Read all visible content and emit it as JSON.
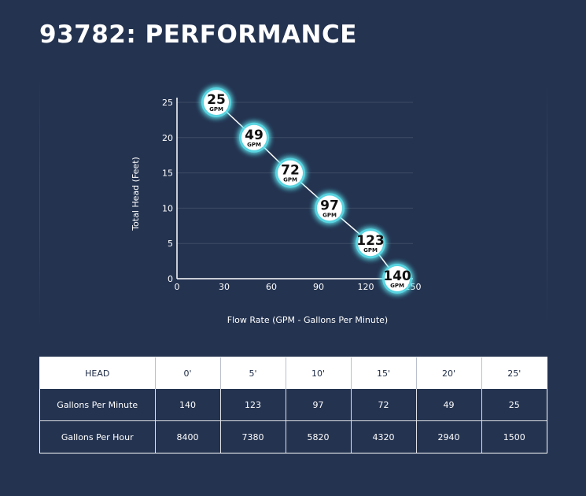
{
  "page": {
    "title": "93782: PERFORMANCE"
  },
  "chart_data": {
    "type": "line",
    "title": "",
    "xlabel": "Flow Rate (GPM - Gallons Per Minute)",
    "ylabel": "Total Head (Feet)",
    "xlim": [
      0,
      150
    ],
    "ylim": [
      0,
      25
    ],
    "x_ticks": [
      "0",
      "30",
      "60",
      "90",
      "120",
      "150"
    ],
    "y_ticks": [
      "0",
      "5",
      "10",
      "15",
      "20",
      "25"
    ],
    "grid": true,
    "series": [
      {
        "x": [
          25,
          49,
          72,
          97,
          123,
          140
        ],
        "y": [
          25,
          20,
          15,
          10,
          5,
          0
        ],
        "labels": [
          "25",
          "49",
          "72",
          "97",
          "123",
          "140"
        ]
      }
    ],
    "point_unit": "GPM",
    "colors": {
      "line": "#ffffff",
      "bubble_glow": "#5ee6f0",
      "bubble_fill": "#ffffff"
    }
  },
  "table": {
    "headers": [
      "HEAD",
      "0'",
      "5'",
      "10'",
      "15'",
      "20'",
      "25'"
    ],
    "rows": [
      [
        "Gallons Per Minute",
        "140",
        "123",
        "97",
        "72",
        "49",
        "25"
      ],
      [
        "Gallons Per Hour",
        "8400",
        "7380",
        "5820",
        "4320",
        "2940",
        "1500"
      ]
    ]
  },
  "colors": {
    "background": "#243350",
    "text": "#ffffff",
    "table_header_bg": "#ffffff",
    "table_header_text": "#1c2a45"
  }
}
